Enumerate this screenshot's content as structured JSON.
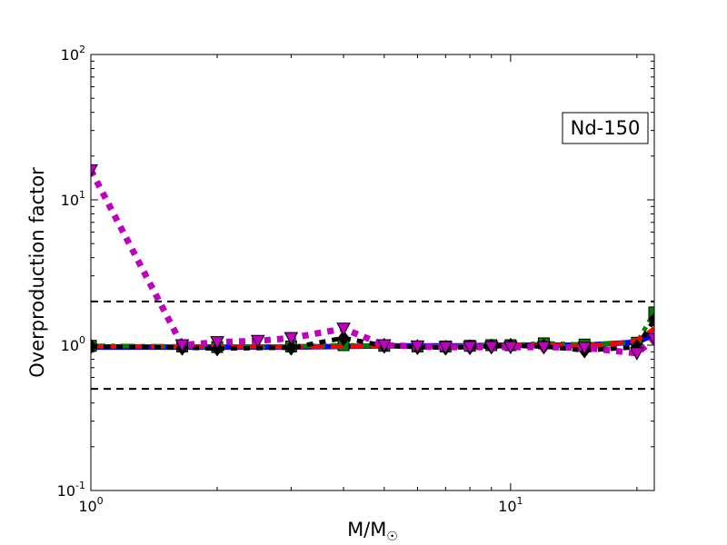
{
  "chart_data": {
    "type": "line",
    "title": "",
    "xlabel": "M/M",
    "xlabel_subscript": "☉",
    "ylabel": "Overproduction factor",
    "xscale": "log",
    "yscale": "log",
    "xlim": [
      1,
      22
    ],
    "ylim": [
      0.1,
      100
    ],
    "x_ticks": [
      {
        "value": 1,
        "base": "10",
        "exp": "0"
      },
      {
        "value": 10,
        "base": "10",
        "exp": "1"
      }
    ],
    "y_ticks": [
      {
        "value": 0.1,
        "base": "10",
        "exp": "-1"
      },
      {
        "value": 1,
        "base": "10",
        "exp": "0"
      },
      {
        "value": 10,
        "base": "10",
        "exp": "1"
      },
      {
        "value": 100,
        "base": "10",
        "exp": "2"
      }
    ],
    "annotation": "Nd-150",
    "annotation_position": "upper-right",
    "grid": false,
    "legend": "none",
    "reference_lines": [
      2.0,
      0.5
    ],
    "series": [
      {
        "color": "#0000ff",
        "dash": "solid",
        "marker": "none",
        "width": 6,
        "x": [
          1,
          2,
          3,
          4,
          5,
          6,
          7,
          8,
          9,
          10,
          12,
          15,
          20,
          22
        ],
        "y": [
          0.97,
          0.97,
          0.97,
          0.98,
          0.99,
          0.99,
          0.99,
          0.99,
          1.0,
          1.0,
          1.0,
          1.0,
          1.05,
          1.18
        ]
      },
      {
        "color": "#008000",
        "dash": "dashdot",
        "marker": "square",
        "width": 5,
        "x": [
          1,
          1.65,
          2,
          3,
          4,
          5,
          6,
          7,
          8,
          9,
          10,
          12,
          15,
          20,
          22
        ],
        "y": [
          0.99,
          0.98,
          0.97,
          0.98,
          1.0,
          0.99,
          0.98,
          0.98,
          0.99,
          1.0,
          1.0,
          1.03,
          1.01,
          1.04,
          1.68
        ]
      },
      {
        "color": "#ff0000",
        "dash": "dashed",
        "marker": "none",
        "width": 5,
        "x": [
          1,
          2,
          3,
          4,
          5,
          6,
          7,
          8,
          9,
          10,
          12,
          15,
          18,
          20,
          22
        ],
        "y": [
          0.98,
          0.98,
          0.97,
          0.98,
          0.99,
          0.98,
          0.98,
          0.98,
          0.99,
          0.99,
          1.0,
          0.98,
          1.03,
          1.08,
          1.3
        ]
      },
      {
        "color": "#000000",
        "dash": "dotted",
        "marker": "diamond",
        "width": 5,
        "x": [
          1,
          1.65,
          2,
          3,
          4,
          5,
          6,
          7,
          8,
          9,
          10,
          12,
          15,
          20,
          22
        ],
        "y": [
          0.98,
          0.96,
          0.95,
          0.96,
          1.12,
          0.99,
          0.97,
          0.96,
          0.97,
          0.98,
          0.99,
          0.98,
          0.92,
          0.97,
          1.5
        ]
      },
      {
        "color": "#bf00bf",
        "dash": "dotted",
        "marker": "triangle-down",
        "width": 7,
        "x": [
          1,
          1.65,
          2,
          2.5,
          3,
          4,
          5,
          6,
          7,
          8,
          9,
          10,
          12,
          15,
          20,
          22
        ],
        "y": [
          16.0,
          1.0,
          1.05,
          1.07,
          1.12,
          1.3,
          1.0,
          0.98,
          0.97,
          0.97,
          0.97,
          0.97,
          0.97,
          0.96,
          0.88,
          1.1
        ]
      }
    ]
  }
}
